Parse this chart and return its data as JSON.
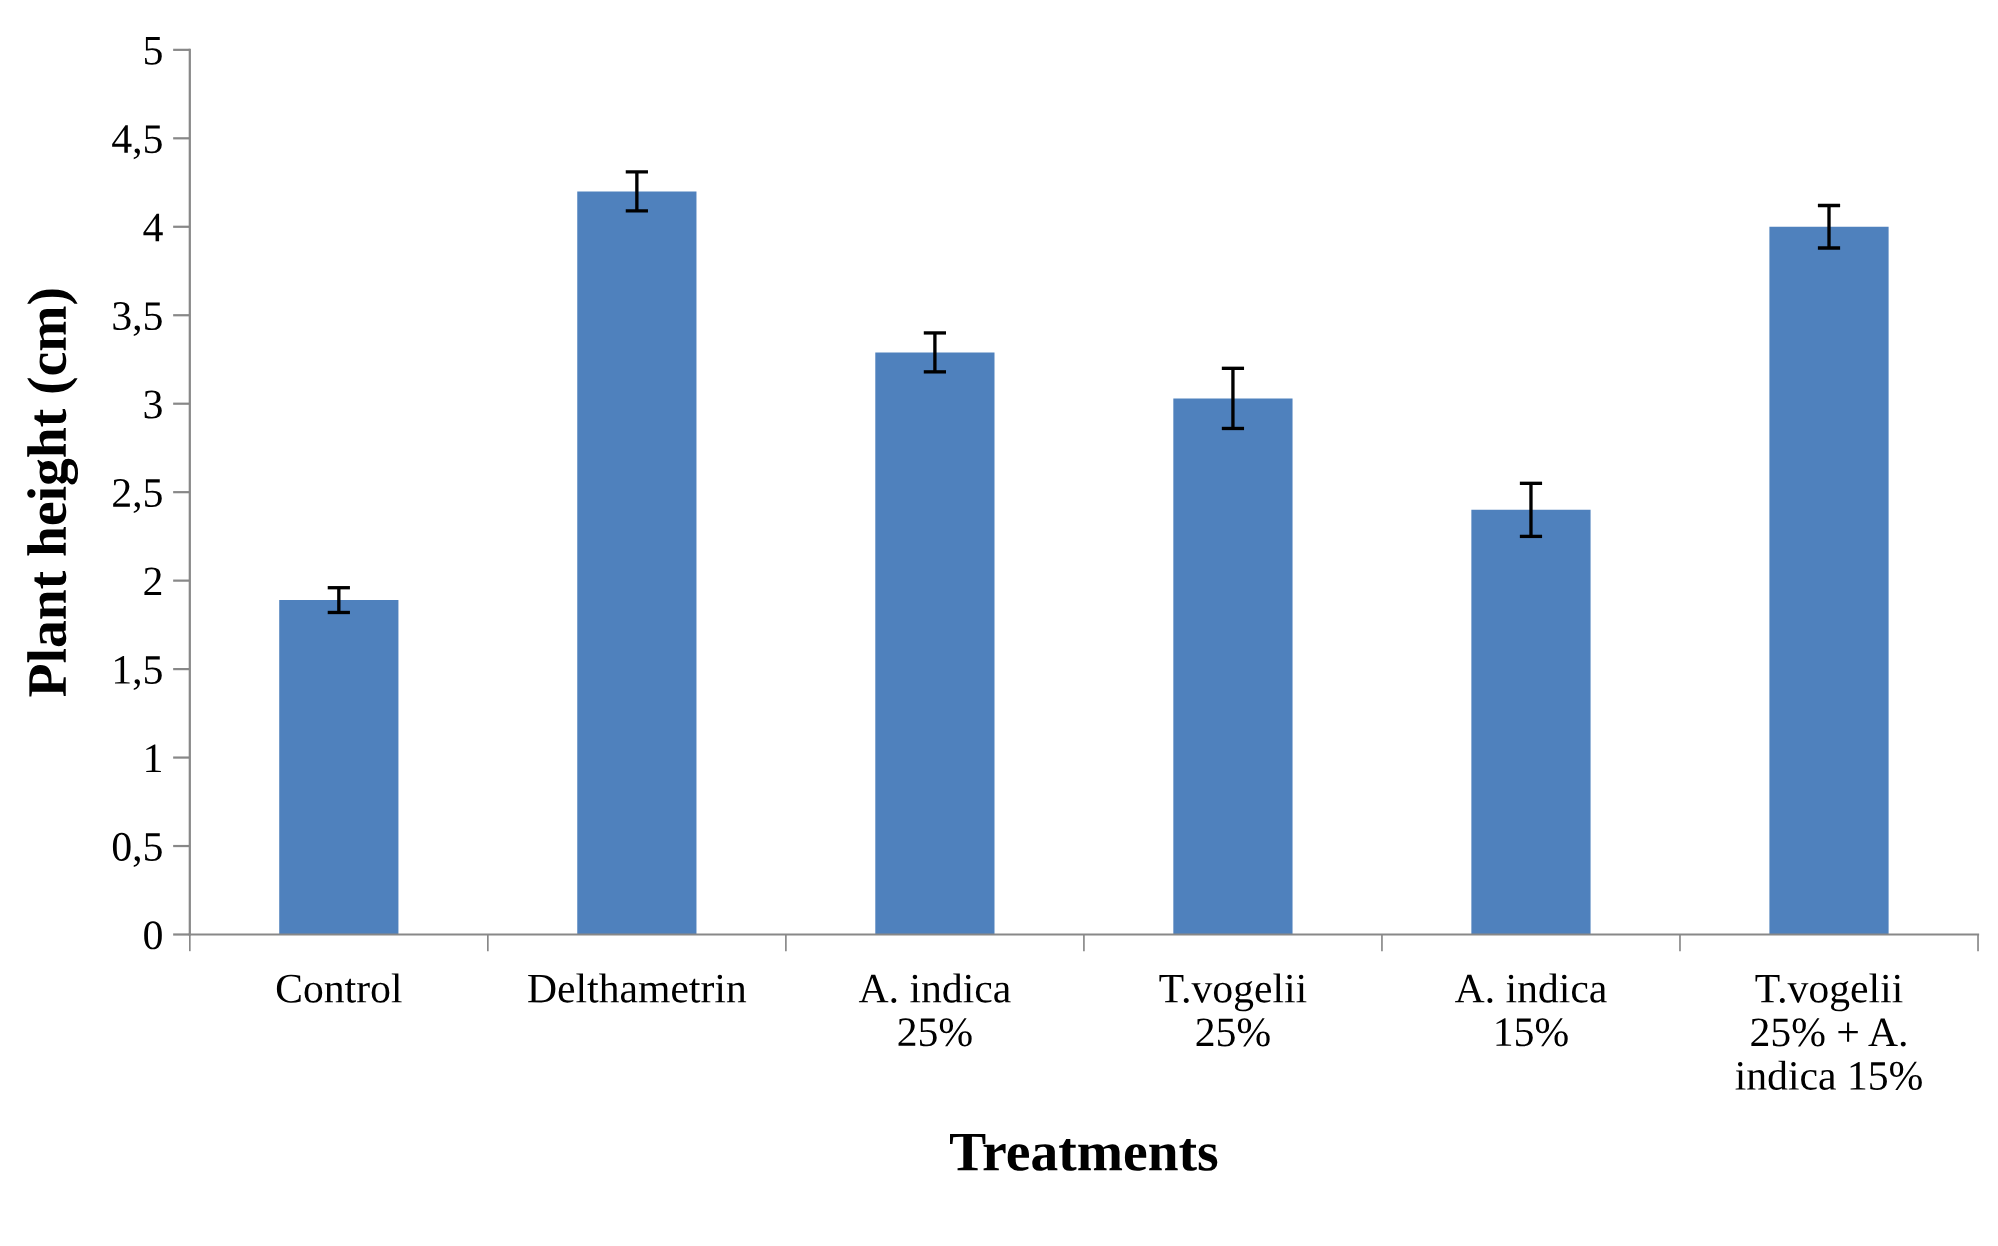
{
  "chart_data": {
    "type": "bar",
    "xlabel": "Treatments",
    "ylabel": "Plant height (cm)",
    "categories": [
      "Control",
      "Delthametrin",
      "A. indica\n25%",
      "T.vogelii\n25%",
      "A. indica\n15%",
      "T.vogelii\n25% + A.\nindica 15%"
    ],
    "values": [
      1.89,
      4.2,
      3.29,
      3.03,
      2.4,
      4.0
    ],
    "errors": [
      0.07,
      0.11,
      0.11,
      0.17,
      0.15,
      0.12
    ],
    "color": "#4f81bd",
    "ylim": [
      0,
      5
    ],
    "yticks": [
      0,
      {
        "value": 0.5,
        "label": "0,5"
      },
      1,
      {
        "value": 1.5,
        "label": "1,5"
      },
      2,
      {
        "value": 2.5,
        "label": "2,5"
      },
      3,
      {
        "value": 3.5,
        "label": "3,5"
      },
      4,
      {
        "value": 4.5,
        "label": "4,5"
      },
      5
    ],
    "grid": false
  }
}
